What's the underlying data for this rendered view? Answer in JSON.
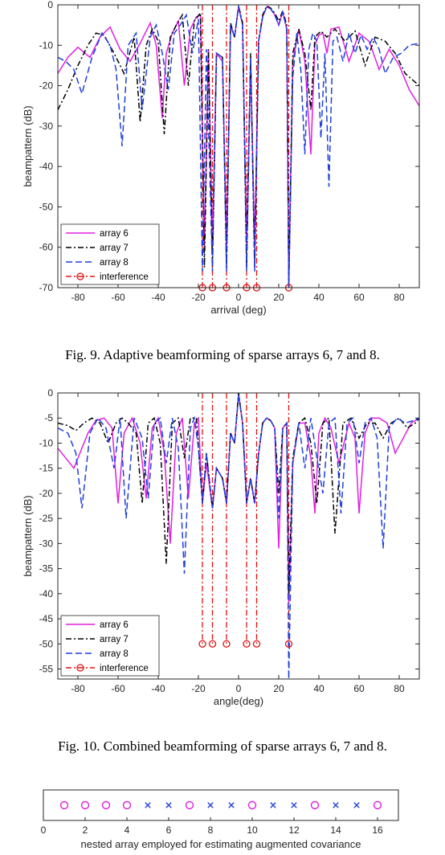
{
  "figures": [
    {
      "caption": "Fig. 9.    Adaptive beamforming of sparse arrays 6, 7 and 8.",
      "chart_data": {
        "type": "line",
        "xlabel": "arrival (deg)",
        "ylabel": "beampattern (dB)",
        "xlim": [
          -90,
          90
        ],
        "ylim": [
          -70,
          0
        ],
        "xticks": [
          -80,
          -60,
          -40,
          -20,
          0,
          20,
          40,
          60,
          80
        ],
        "yticks": [
          0,
          -10,
          -20,
          -30,
          -40,
          -50,
          -60,
          -70
        ],
        "legend_position": "bottom-left",
        "interference_angles": [
          -18,
          -13,
          -6,
          4,
          9,
          25
        ],
        "interference_marker_level": -70,
        "series": [
          {
            "name": "array 6",
            "color": "#e020e0",
            "style": "solid",
            "x": [
              -90,
              -85,
              -80,
              -74,
              -69,
              -64,
              -59,
              -54,
              -49,
              -44,
              -41,
              -38,
              -36,
              -33,
              -30,
              -27,
              -24,
              -21,
              -19,
              -17,
              -15,
              -13,
              -11,
              -8,
              -6,
              -4,
              -2,
              0,
              2,
              4,
              6,
              8,
              10,
              12,
              14,
              16,
              18,
              20,
              22,
              24,
              25,
              27,
              30,
              33,
              36,
              38,
              40,
              42,
              44,
              46,
              50,
              55,
              60,
              65,
              70,
              75,
              80,
              85,
              90
            ],
            "y": [
              -17,
              -13,
              -10.5,
              -13,
              -8,
              -5.5,
              -11,
              -14,
              -9.5,
              -4.5,
              -10,
              -28,
              -12,
              -7,
              -4,
              -20,
              -6,
              -3,
              -2.5,
              -60,
              -11,
              -60,
              -12,
              -14,
              -60,
              -5,
              -8,
              -0.5,
              -5,
              -60,
              -13,
              -60,
              -9,
              -3,
              -0.5,
              -1,
              -2.5,
              -5,
              -1.8,
              -6,
              -70,
              -14,
              -6,
              -14,
              -37,
              -10,
              -7.5,
              -7,
              -12,
              -6,
              -5.5,
              -14,
              -7,
              -9,
              -16,
              -11,
              -15,
              -21,
              -25
            ]
          },
          {
            "name": "array 7",
            "color": "#000000",
            "style": "dashdot",
            "x": [
              -90,
              -85,
              -80,
              -75,
              -71,
              -67,
              -62,
              -57,
              -52,
              -49,
              -46,
              -43,
              -40,
              -37,
              -34,
              -31,
              -28,
              -25,
              -22,
              -19,
              -17,
              -15,
              -13,
              -11,
              -8,
              -6,
              -4,
              -2,
              0,
              2,
              4,
              6,
              8,
              10,
              12,
              14,
              16,
              18,
              20,
              22,
              24,
              25,
              27,
              30,
              33,
              36,
              38,
              41,
              44,
              48,
              53,
              58,
              63,
              68,
              73,
              78,
              83,
              90
            ],
            "y": [
              -26,
              -21,
              -15,
              -10,
              -7,
              -7.5,
              -12,
              -17,
              -8,
              -29,
              -10,
              -6,
              -9,
              -32,
              -8,
              -5,
              -2.5,
              -20,
              -4,
              -2,
              -65,
              -11,
              -65,
              -12,
              -13,
              -65,
              -4.5,
              -8,
              -0.2,
              -4.5,
              -65,
              -12,
              -65,
              -9,
              -2.5,
              -0.3,
              -0.8,
              -2,
              -4,
              -1.5,
              -5,
              -70,
              -12,
              -6,
              -12,
              -26,
              -8,
              -6.5,
              -8,
              -6,
              -9,
              -6.5,
              -15,
              -8,
              -9,
              -12,
              -17,
              -20
            ]
          },
          {
            "name": "array 8",
            "color": "#1f3fdf",
            "style": "dashed",
            "x": [
              -90,
              -86,
              -82,
              -78,
              -73,
              -68,
              -64,
              -61,
              -58,
              -55,
              -51,
              -48,
              -44,
              -41,
              -38,
              -35,
              -32,
              -29,
              -26,
              -23,
              -20,
              -18,
              -16,
              -13,
              -11,
              -8,
              -6,
              -4,
              -2,
              0,
              2,
              4,
              6,
              8,
              10,
              12,
              14,
              16,
              18,
              20,
              22,
              24,
              25,
              27,
              29,
              31,
              33,
              35,
              37,
              39,
              41,
              43,
              45,
              47,
              49,
              52,
              55,
              58,
              61,
              64,
              67,
              70,
              73,
              77,
              81,
              85,
              90
            ],
            "y": [
              -13,
              -14,
              -16,
              -22,
              -13,
              -7,
              -10,
              -16,
              -35,
              -10,
              -7,
              -26,
              -8,
              -5,
              -12,
              -21,
              -7,
              -5,
              -2.5,
              -12,
              -3.5,
              -66,
              -11,
              -66,
              -12,
              -13,
              -66,
              -5,
              -8,
              -0.3,
              -5,
              -66,
              -13,
              -66,
              -9,
              -3,
              -0.5,
              -1,
              -2.5,
              -5,
              -1.8,
              -6,
              -70,
              -18,
              -7,
              -16,
              -37,
              -11,
              -7,
              -9,
              -33,
              -12,
              -45,
              -9,
              -8,
              -14,
              -7,
              -12,
              -7.5,
              -11,
              -8,
              -11,
              -17,
              -13,
              -12,
              -10,
              -9.5
            ]
          },
          {
            "name": "interference",
            "color": "#e01010",
            "style": "dashdot-marker"
          }
        ]
      }
    },
    {
      "caption": "Fig. 10.    Combined beamforming of sparse arrays 6, 7 and 8.",
      "chart_data": {
        "type": "line",
        "xlabel": "angle(deg)",
        "ylabel": "beampattern (dB)",
        "xlim": [
          -90,
          90
        ],
        "ylim": [
          -57,
          0
        ],
        "xticks": [
          -80,
          -60,
          -40,
          -20,
          0,
          20,
          40,
          60,
          80
        ],
        "yticks": [
          0,
          -5,
          -10,
          -15,
          -20,
          -25,
          -30,
          -35,
          -40,
          -45,
          -50,
          -55
        ],
        "legend_position": "bottom-left",
        "interference_angles": [
          -18,
          -13,
          -6,
          4,
          9,
          25
        ],
        "interference_marker_level": -50,
        "series": [
          {
            "name": "array 6",
            "color": "#e020e0",
            "style": "solid",
            "x": [
              -90,
              -86,
              -82,
              -79,
              -75,
              -71,
              -67,
              -63,
              -60,
              -57,
              -53,
              -49,
              -46,
              -43,
              -40,
              -37,
              -34,
              -31,
              -28,
              -25,
              -22,
              -20,
              -18,
              -16,
              -13,
              -11,
              -8,
              -6,
              -4,
              -2,
              0,
              2,
              4,
              6,
              8,
              10,
              12,
              14,
              16,
              18,
              20,
              22,
              24,
              25,
              27,
              30,
              33,
              36,
              38,
              40,
              43,
              46,
              50,
              55,
              58,
              60,
              63,
              66,
              70,
              74,
              78,
              82,
              86,
              90
            ],
            "y": [
              -11,
              -13,
              -15,
              -12,
              -8,
              -5.5,
              -5,
              -7,
              -22,
              -8,
              -5,
              -10,
              -21,
              -7,
              -5,
              -12,
              -30,
              -8,
              -5,
              -21,
              -6,
              -5,
              -22,
              -14,
              -23,
              -15,
              -17,
              -22,
              -8,
              -10,
              -0.3,
              -6,
              -22,
              -17,
              -22,
              -12,
              -6,
              -5,
              -5.5,
              -7,
              -31,
              -7,
              -6,
              -42,
              -14,
              -6,
              -6,
              -13,
              -24,
              -8,
              -5,
              -7,
              -14,
              -6,
              -9,
              -24,
              -8,
              -5,
              -5,
              -6,
              -12,
              -9,
              -6,
              -5
            ]
          },
          {
            "name": "array 7",
            "color": "#000000",
            "style": "dashdot",
            "x": [
              -90,
              -85,
              -81,
              -77,
              -73,
              -69,
              -65,
              -61,
              -58,
              -55,
              -51,
              -48,
              -45,
              -42,
              -39,
              -36,
              -33,
              -30,
              -27,
              -24,
              -21,
              -18,
              -16,
              -13,
              -11,
              -8,
              -6,
              -4,
              -2,
              0,
              2,
              4,
              6,
              8,
              10,
              12,
              14,
              16,
              18,
              20,
              22,
              24,
              25,
              27,
              30,
              33,
              36,
              39,
              42,
              45,
              48,
              52,
              56,
              60,
              64,
              68,
              72,
              76,
              80,
              84,
              88,
              90
            ],
            "y": [
              -6,
              -6.5,
              -7.5,
              -6,
              -5,
              -6,
              -10,
              -6,
              -5,
              -6,
              -8,
              -22,
              -6,
              -5,
              -10,
              -34,
              -6,
              -5,
              -13,
              -5,
              -5,
              -22,
              -12,
              -23,
              -15,
              -17,
              -22,
              -8,
              -10,
              0,
              -6,
              -22,
              -17,
              -22,
              -12,
              -6,
              -5,
              -5.5,
              -7,
              -20,
              -7,
              -6,
              -40,
              -13,
              -6,
              -5,
              -10,
              -22,
              -6,
              -5,
              -28,
              -6,
              -5,
              -9,
              -6,
              -6,
              -9,
              -6,
              -5,
              -7,
              -6,
              -5
            ]
          },
          {
            "name": "array 8",
            "color": "#1f3fdf",
            "style": "dashed",
            "x": [
              -90,
              -85,
              -81,
              -78,
              -74,
              -70,
              -66,
              -62,
              -59,
              -56,
              -52,
              -48,
              -45,
              -42,
              -39,
              -36,
              -33,
              -30,
              -27,
              -24,
              -22,
              -20,
              -18,
              -16,
              -13,
              -11,
              -8,
              -6,
              -4,
              -2,
              0,
              2,
              4,
              6,
              8,
              10,
              12,
              14,
              16,
              18,
              20,
              22,
              24,
              25,
              27,
              30,
              33,
              36,
              39,
              42,
              45,
              48,
              51,
              54,
              57,
              60,
              63,
              66,
              69,
              72,
              75,
              79,
              83,
              87,
              90
            ],
            "y": [
              -7,
              -8,
              -12,
              -23,
              -8,
              -5,
              -7,
              -15,
              -5,
              -25,
              -5,
              -9,
              -21,
              -6,
              -5,
              -14,
              -5,
              -11,
              -36,
              -7,
              -5,
              -11,
              -22,
              -12,
              -23,
              -15,
              -17,
              -22,
              -8,
              -10,
              -0.3,
              -6,
              -22,
              -17,
              -22,
              -12,
              -6,
              -5,
              -5.5,
              -7,
              -25,
              -7,
              -6,
              -57,
              -14,
              -6,
              -15,
              -5,
              -13,
              -20,
              -6,
              -5,
              -24,
              -6,
              -5,
              -14,
              -6,
              -5,
              -9,
              -31,
              -7,
              -5,
              -6,
              -5.5,
              -5
            ]
          },
          {
            "name": "interference",
            "color": "#e01010",
            "style": "dashdot-marker"
          }
        ]
      }
    }
  ],
  "nested_array": {
    "xlabel": "nested array employed for estimating augmented covariance",
    "xlim": [
      0,
      17
    ],
    "xticks": [
      0,
      2,
      4,
      6,
      8,
      10,
      12,
      14,
      16
    ],
    "circle_color": "#e020e0",
    "cross_color": "#1f3fdf",
    "sensors": [
      {
        "pos": 1,
        "type": "circle"
      },
      {
        "pos": 2,
        "type": "circle"
      },
      {
        "pos": 3,
        "type": "circle"
      },
      {
        "pos": 4,
        "type": "circle"
      },
      {
        "pos": 5,
        "type": "cross"
      },
      {
        "pos": 6,
        "type": "cross"
      },
      {
        "pos": 7,
        "type": "circle"
      },
      {
        "pos": 8,
        "type": "cross"
      },
      {
        "pos": 9,
        "type": "cross"
      },
      {
        "pos": 10,
        "type": "circle"
      },
      {
        "pos": 11,
        "type": "cross"
      },
      {
        "pos": 12,
        "type": "cross"
      },
      {
        "pos": 13,
        "type": "circle"
      },
      {
        "pos": 14,
        "type": "cross"
      },
      {
        "pos": 15,
        "type": "cross"
      },
      {
        "pos": 16,
        "type": "circle"
      }
    ]
  }
}
